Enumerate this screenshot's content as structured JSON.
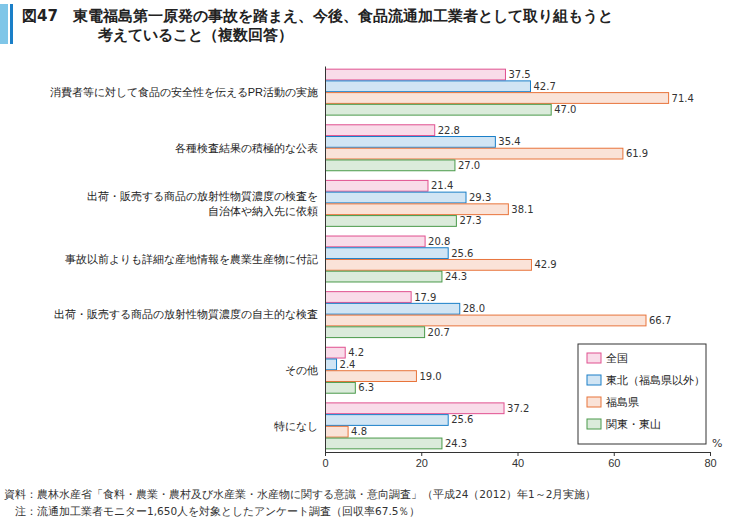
{
  "chart_data": {
    "type": "bar",
    "orientation": "horizontal",
    "title": "図47　東電福島第一原発の事故を踏まえ、今後、食品流通加工業者として取り組もうと\n考えていること（複数回答）",
    "xlabel": "%",
    "categories": [
      "消費者等に対して食品の安全性を伝えるPR活動の実施",
      "各種検査結果の積極的な公表",
      "出荷・販売する商品の放射性物質濃度の検査を\n自治体や納入先に依頼",
      "事故以前よりも詳細な産地情報を農業生産物に付記",
      "出荷・販売する商品の放射性物質濃度の自主的な検査",
      "その他",
      "特になし"
    ],
    "series": [
      {
        "name": "全国",
        "color": "#e0508f",
        "values": [
          37.5,
          22.8,
          21.4,
          20.8,
          17.9,
          4.2,
          37.2
        ],
        "value_labels": [
          "37.5",
          "22.8",
          "21.4",
          "20.8",
          "17.9",
          "4.2",
          "37.2"
        ]
      },
      {
        "name": "東北（福島県以外）",
        "color": "#1a7fc8",
        "values": [
          42.7,
          35.4,
          29.3,
          25.6,
          28.0,
          2.4,
          25.6
        ],
        "value_labels": [
          "42.7",
          "35.4",
          "29.3",
          "25.6",
          "28.0",
          "2.4",
          "25.6"
        ]
      },
      {
        "name": "福島県",
        "color": "#e8743b",
        "values": [
          71.4,
          61.9,
          38.1,
          42.9,
          66.7,
          19.0,
          4.8
        ],
        "value_labels": [
          "71.4",
          "61.9",
          "38.1",
          "42.9",
          "66.7",
          "19.0",
          "4.8"
        ]
      },
      {
        "name": "関東・東山",
        "color": "#4a9a4a",
        "values": [
          47.0,
          27.0,
          27.3,
          24.3,
          20.7,
          6.3,
          24.3
        ],
        "value_labels": [
          "47.0",
          "27.0",
          "27.3",
          "24.3",
          "20.7",
          "6.3",
          "24.3"
        ]
      }
    ],
    "xlim": [
      0,
      80
    ],
    "xticks": [
      0,
      20,
      40,
      60,
      80
    ],
    "grid": false,
    "legend": "lower right",
    "data_labels": true,
    "annotations": [
      "資料：農林水産省「食料・農業・農村及び水産業・水産物に関する意識・意向調査」（平成24（2012）年1～2月実施）",
      "　注：流通加工業者モニター1,650人を対象としたアンケート調査（回収率67.5％）"
    ]
  }
}
